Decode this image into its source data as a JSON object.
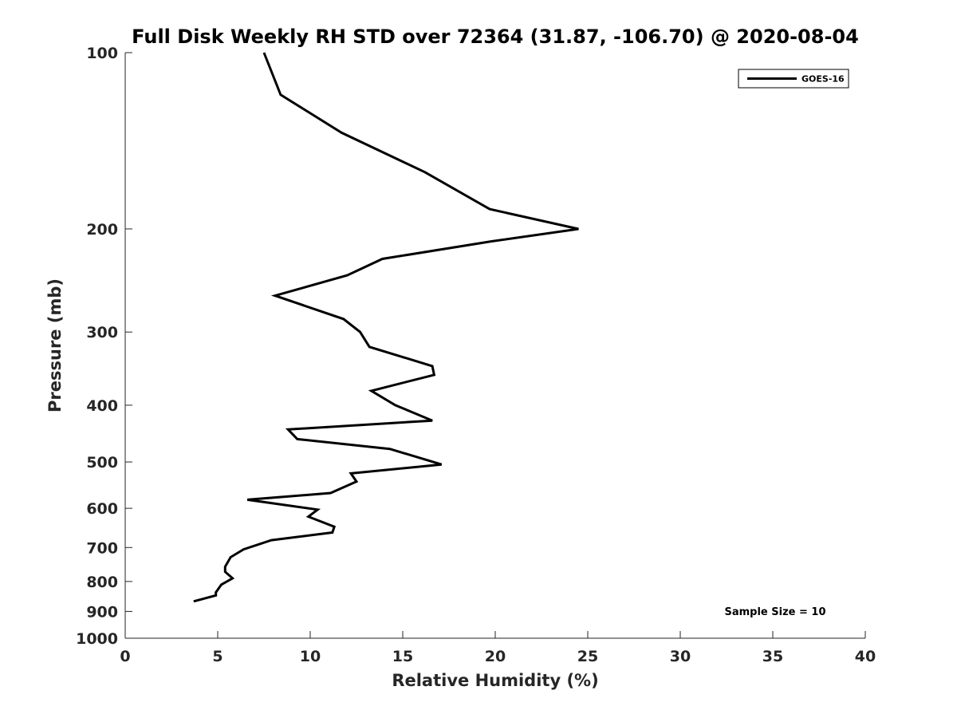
{
  "chart_data": {
    "type": "line",
    "title": "Full Disk Weekly RH STD over 72364 (31.87, -106.70) @ 2020-08-04",
    "xlabel": "Relative Humidity (%)",
    "ylabel": "Pressure (mb)",
    "xlim": [
      0,
      40
    ],
    "ylim": [
      100,
      1000
    ],
    "y_scale": "log",
    "y_reversed": true,
    "x_ticks": [
      0,
      5,
      10,
      15,
      20,
      25,
      30,
      35,
      40
    ],
    "y_ticks": [
      100,
      200,
      300,
      400,
      500,
      600,
      700,
      800,
      900,
      1000
    ],
    "grid": false,
    "legend": {
      "placement": "top-right",
      "entries": [
        "GOES-16"
      ]
    },
    "annotation": "Sample Size = 10",
    "series": [
      {
        "name": "GOES-16",
        "color": "#000000",
        "points": [
          [
            7.5,
            100
          ],
          [
            8.4,
            118
          ],
          [
            11.7,
            137
          ],
          [
            16.2,
            160
          ],
          [
            19.7,
            185
          ],
          [
            24.5,
            200
          ],
          [
            19.8,
            210
          ],
          [
            13.9,
            225
          ],
          [
            12.0,
            240
          ],
          [
            8.1,
            260
          ],
          [
            11.8,
            285
          ],
          [
            12.7,
            300
          ],
          [
            13.2,
            318
          ],
          [
            16.6,
            343
          ],
          [
            16.7,
            355
          ],
          [
            13.3,
            378
          ],
          [
            14.6,
            400
          ],
          [
            16.6,
            425
          ],
          [
            8.8,
            440
          ],
          [
            9.3,
            457
          ],
          [
            14.3,
            475
          ],
          [
            17.1,
            505
          ],
          [
            12.2,
            523
          ],
          [
            12.5,
            540
          ],
          [
            11.1,
            565
          ],
          [
            6.6,
            580
          ],
          [
            10.4,
            603
          ],
          [
            9.9,
            620
          ],
          [
            11.3,
            645
          ],
          [
            11.2,
            660
          ],
          [
            7.9,
            680
          ],
          [
            6.4,
            705
          ],
          [
            5.7,
            727
          ],
          [
            5.4,
            755
          ],
          [
            5.4,
            770
          ],
          [
            5.8,
            790
          ],
          [
            5.2,
            810
          ],
          [
            4.9,
            835
          ],
          [
            4.9,
            845
          ],
          [
            3.7,
            865
          ]
        ]
      }
    ]
  }
}
